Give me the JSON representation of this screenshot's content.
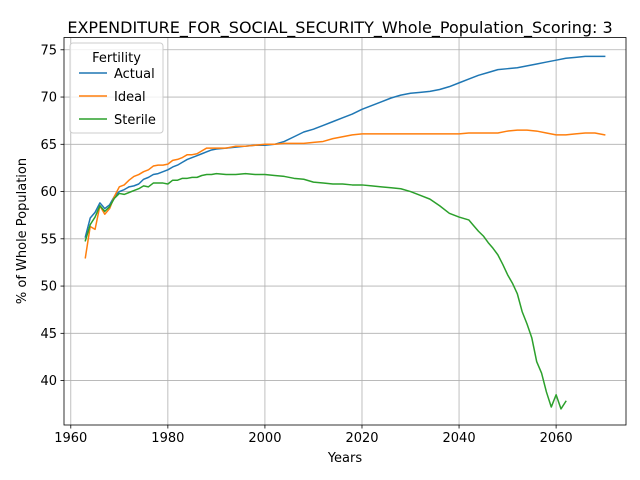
{
  "chart_data": {
    "type": "line",
    "title": "EXPENDITURE_FOR_SOCIAL_SECURITY_Whole_Population_Scoring: 3",
    "xlabel": "Years",
    "ylabel": "% of Whole Population",
    "xlim": [
      1958.6,
      2074.4
    ],
    "ylim": [
      35.3,
      76.3
    ],
    "xticks": [
      1960,
      1980,
      2000,
      2020,
      2040,
      2060
    ],
    "yticks": [
      40,
      45,
      50,
      55,
      60,
      65,
      70,
      75
    ],
    "grid": true,
    "legend": {
      "title": "Fertility",
      "placement": "top-left"
    },
    "colors": {
      "Actual": "#1f77b4",
      "Ideal": "#ff7f0e",
      "Sterile": "#2ca02c"
    },
    "series": [
      {
        "name": "Actual",
        "x": [
          1963,
          1964,
          1965,
          1966,
          1967,
          1968,
          1969,
          1970,
          1971,
          1972,
          1973,
          1974,
          1975,
          1976,
          1977,
          1978,
          1979,
          1980,
          1981,
          1982,
          1983,
          1984,
          1985,
          1986,
          1987,
          1988,
          1989,
          1990,
          1992,
          1994,
          1996,
          1998,
          2000,
          2002,
          2004,
          2006,
          2008,
          2010,
          2012,
          2014,
          2016,
          2018,
          2020,
          2022,
          2024,
          2026,
          2028,
          2030,
          2032,
          2034,
          2036,
          2038,
          2040,
          2042,
          2044,
          2046,
          2048,
          2050,
          2052,
          2054,
          2056,
          2058,
          2060,
          2062,
          2064,
          2066,
          2068,
          2070
        ],
        "values": [
          55.2,
          57.2,
          57.8,
          58.8,
          58.2,
          58.6,
          59.5,
          60.0,
          60.2,
          60.5,
          60.6,
          60.8,
          61.3,
          61.5,
          61.8,
          61.9,
          62.1,
          62.3,
          62.6,
          62.8,
          63.1,
          63.4,
          63.6,
          63.8,
          64.0,
          64.2,
          64.4,
          64.5,
          64.6,
          64.7,
          64.8,
          64.9,
          64.9,
          65.0,
          65.3,
          65.8,
          66.3,
          66.6,
          67.0,
          67.4,
          67.8,
          68.2,
          68.7,
          69.1,
          69.5,
          69.9,
          70.2,
          70.4,
          70.5,
          70.6,
          70.8,
          71.1,
          71.5,
          71.9,
          72.3,
          72.6,
          72.9,
          73.0,
          73.1,
          73.3,
          73.5,
          73.7,
          73.9,
          74.1,
          74.2,
          74.3,
          74.3,
          74.3
        ]
      },
      {
        "name": "Ideal",
        "x": [
          1963,
          1964,
          1965,
          1966,
          1967,
          1968,
          1969,
          1970,
          1971,
          1972,
          1973,
          1974,
          1975,
          1976,
          1977,
          1978,
          1979,
          1980,
          1981,
          1982,
          1983,
          1984,
          1985,
          1986,
          1987,
          1988,
          1989,
          1990,
          1992,
          1994,
          1996,
          1998,
          2000,
          2002,
          2004,
          2006,
          2008,
          2010,
          2012,
          2014,
          2016,
          2018,
          2020,
          2022,
          2024,
          2026,
          2028,
          2030,
          2032,
          2034,
          2036,
          2038,
          2040,
          2042,
          2044,
          2046,
          2048,
          2050,
          2052,
          2054,
          2056,
          2058,
          2060,
          2062,
          2064,
          2066,
          2068,
          2070
        ],
        "values": [
          53.0,
          56.3,
          56.0,
          58.5,
          57.6,
          58.2,
          59.5,
          60.5,
          60.7,
          61.2,
          61.6,
          61.8,
          62.1,
          62.3,
          62.7,
          62.8,
          62.8,
          62.9,
          63.3,
          63.4,
          63.6,
          63.9,
          63.9,
          64.0,
          64.3,
          64.6,
          64.6,
          64.6,
          64.6,
          64.8,
          64.8,
          64.9,
          65.0,
          65.0,
          65.1,
          65.1,
          65.1,
          65.2,
          65.3,
          65.6,
          65.8,
          66.0,
          66.1,
          66.1,
          66.1,
          66.1,
          66.1,
          66.1,
          66.1,
          66.1,
          66.1,
          66.1,
          66.1,
          66.2,
          66.2,
          66.2,
          66.2,
          66.4,
          66.5,
          66.5,
          66.4,
          66.2,
          66.0,
          66.0,
          66.1,
          66.2,
          66.2,
          66.0
        ]
      },
      {
        "name": "Sterile",
        "x": [
          1963,
          1964,
          1965,
          1966,
          1967,
          1968,
          1969,
          1970,
          1971,
          1972,
          1973,
          1974,
          1975,
          1976,
          1977,
          1978,
          1979,
          1980,
          1981,
          1982,
          1983,
          1984,
          1985,
          1986,
          1987,
          1988,
          1989,
          1990,
          1992,
          1994,
          1996,
          1998,
          2000,
          2002,
          2004,
          2006,
          2008,
          2010,
          2012,
          2014,
          2016,
          2018,
          2020,
          2022,
          2024,
          2026,
          2028,
          2030,
          2032,
          2034,
          2036,
          2038,
          2040,
          2042,
          2043,
          2044,
          2045,
          2046,
          2047,
          2048,
          2049,
          2050,
          2051,
          2052,
          2053,
          2054,
          2055,
          2056,
          2057,
          2058,
          2059,
          2060,
          2061,
          2062
        ],
        "values": [
          54.8,
          56.5,
          57.3,
          58.5,
          57.9,
          58.4,
          59.3,
          59.8,
          59.7,
          59.9,
          60.1,
          60.3,
          60.6,
          60.5,
          60.9,
          60.9,
          60.9,
          60.8,
          61.2,
          61.2,
          61.4,
          61.4,
          61.5,
          61.5,
          61.7,
          61.8,
          61.8,
          61.9,
          61.8,
          61.8,
          61.9,
          61.8,
          61.8,
          61.7,
          61.6,
          61.4,
          61.3,
          61.0,
          60.9,
          60.8,
          60.8,
          60.7,
          60.7,
          60.6,
          60.5,
          60.4,
          60.3,
          60.0,
          59.6,
          59.2,
          58.5,
          57.7,
          57.3,
          57.0,
          56.4,
          55.8,
          55.3,
          54.6,
          54.0,
          53.3,
          52.3,
          51.2,
          50.3,
          49.2,
          47.3,
          46.0,
          44.5,
          42.0,
          40.8,
          38.8,
          37.2,
          38.5,
          37.0,
          37.8
        ]
      }
    ]
  }
}
